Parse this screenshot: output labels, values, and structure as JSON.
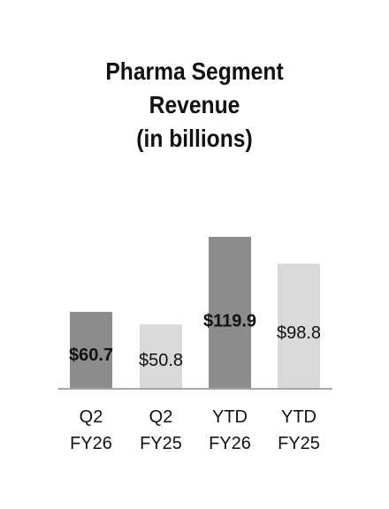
{
  "chart_data": {
    "type": "bar",
    "title_lines": [
      "Pharma Segment",
      "Revenue",
      "(in billions)"
    ],
    "categories": [
      [
        "Q2",
        "FY26"
      ],
      [
        "Q2",
        "FY25"
      ],
      [
        "YTD",
        "FY26"
      ],
      [
        "YTD",
        "FY25"
      ]
    ],
    "values": [
      60.7,
      50.8,
      119.9,
      98.8
    ],
    "data_labels": [
      "$60.7",
      "$50.8",
      "$119.9",
      "$98.8"
    ],
    "bar_colors": [
      "#8c8c8c",
      "#d9d9d9",
      "#8c8c8c",
      "#d9d9d9"
    ],
    "label_bold": [
      true,
      false,
      true,
      false
    ],
    "ylim": [
      0,
      120
    ],
    "axis_color": "#a6a6a6",
    "grid": false,
    "legend": "none"
  }
}
